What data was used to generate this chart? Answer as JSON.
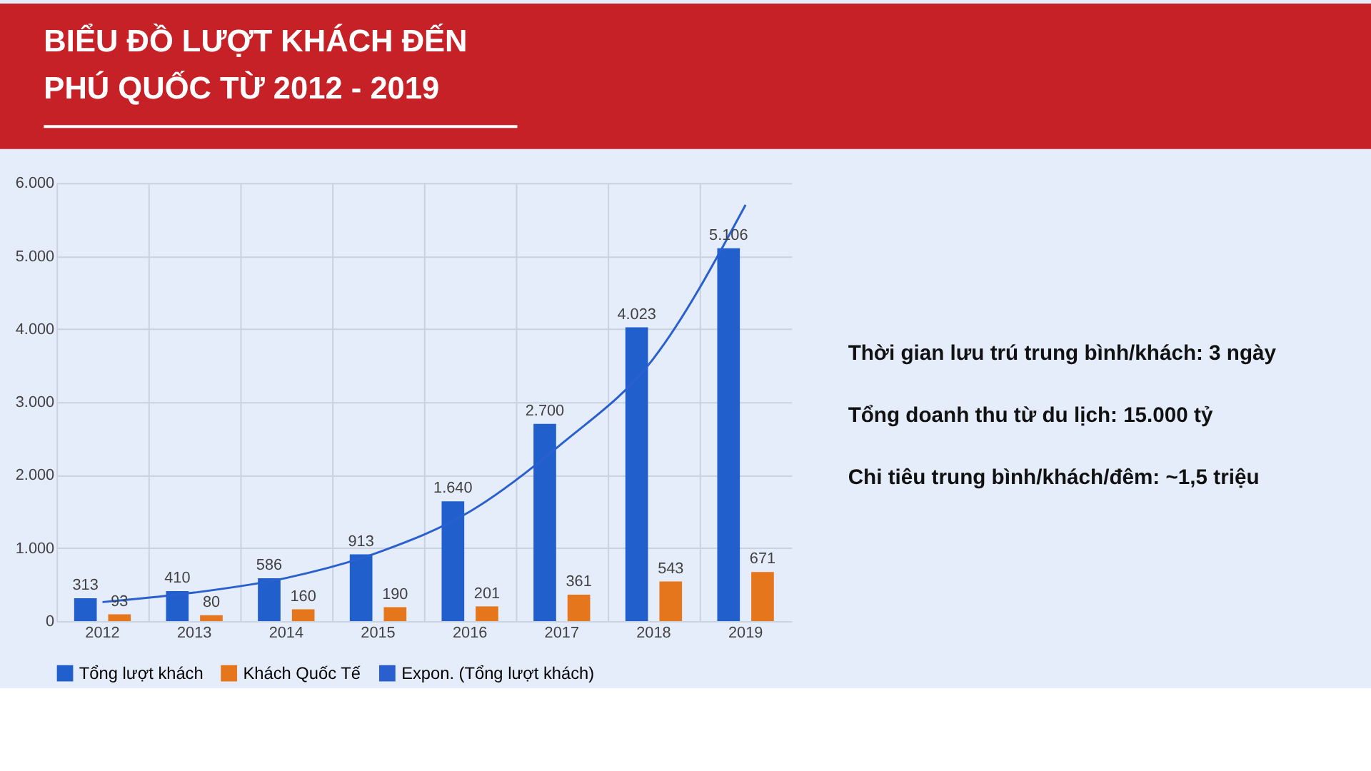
{
  "chart_data": {
    "type": "bar",
    "title": "BIỂU ĐỒ LƯỢT KHÁCH ĐẾN PHÚ QUỐC TỪ 2012 - 2019",
    "categories": [
      "2012",
      "2013",
      "2014",
      "2015",
      "2016",
      "2017",
      "2018",
      "2019"
    ],
    "series": [
      {
        "name": "Tổng lượt khách",
        "color": "#2160cc",
        "values": [
          313,
          410,
          586,
          913,
          1640,
          2700,
          4023,
          5106
        ],
        "value_labels": [
          "313",
          "410",
          "586",
          "913",
          "1.640",
          "2.700",
          "4.023",
          "5.106"
        ]
      },
      {
        "name": "Khách Quốc Tế",
        "color": "#e6761b",
        "values": [
          93,
          80,
          160,
          190,
          201,
          361,
          543,
          671
        ],
        "value_labels": [
          "93",
          "80",
          "160",
          "190",
          "201",
          "361",
          "543",
          "671"
        ]
      },
      {
        "name": "Expon. (Tổng lượt khách)",
        "type": "line",
        "color": "#2a5fd0",
        "values": [
          260,
          390,
          590,
          940,
          1500,
          2430,
          3600,
          5700
        ]
      }
    ],
    "ylim": [
      0,
      6000
    ],
    "yticks": [
      0,
      {
        "value": 1000,
        "label": "1.000"
      },
      {
        "value": 2000,
        "label": "2.000"
      },
      {
        "value": 3000,
        "label": "3.000"
      },
      {
        "value": 4000,
        "label": "4.000"
      },
      {
        "value": 5000,
        "label": "5.000"
      },
      {
        "value": 6000,
        "label": "6.000"
      }
    ],
    "grid": true,
    "legend": "bottom",
    "marker": "none",
    "line_style": "solid",
    "annotations": [
      "Thời gian lưu trú trung bình/khách: 3 ngày",
      "Tổng doanh thu từ du lịch: 15.000 tỷ",
      "Chi tiêu trung bình/khách/đêm: ~1,5 triệu"
    ]
  }
}
